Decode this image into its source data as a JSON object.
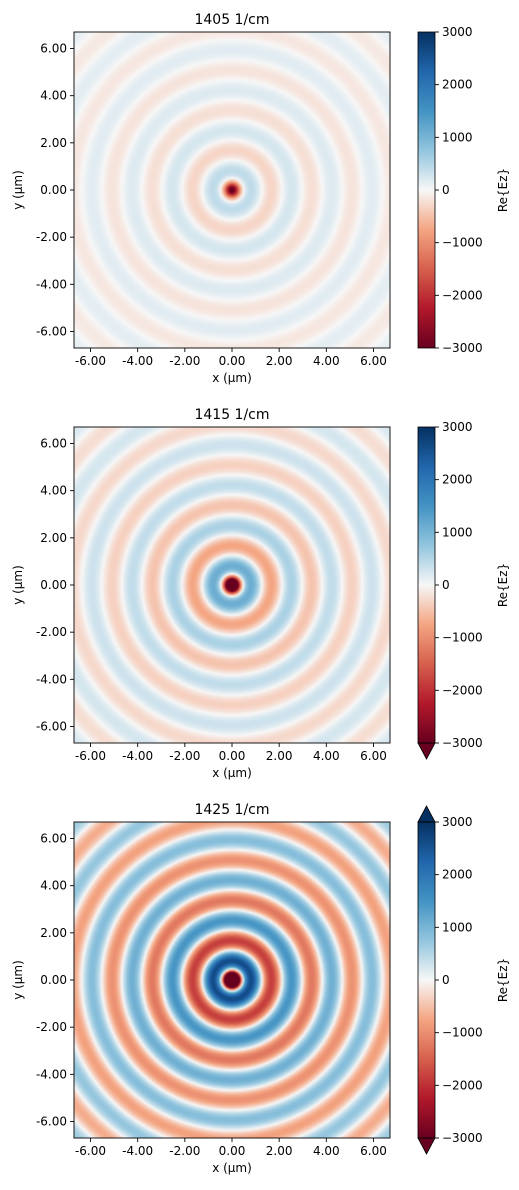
{
  "chart_data": [
    {
      "type": "heatmap",
      "title": "1405 1/cm",
      "xlabel": "x (µm)",
      "ylabel": "y (µm)",
      "xlim": [
        -6.7,
        6.7
      ],
      "ylim": [
        -6.7,
        6.7
      ],
      "xticks": [
        -6,
        -4,
        -2,
        0,
        2,
        4,
        6
      ],
      "xtick_labels": [
        "-6.00",
        "-4.00",
        "-2.00",
        "0.00",
        "2.00",
        "4.00",
        "6.00"
      ],
      "yticks": [
        6,
        4,
        2,
        0,
        -2,
        -4,
        -6
      ],
      "ytick_labels": [
        "6.00",
        "4.00",
        "2.00",
        "0.00",
        "-2.00",
        "-4.00",
        "-6.00"
      ],
      "colorbar": {
        "label": "Re{Ez}",
        "range": [
          -3000,
          3000
        ],
        "ticks": [
          3000,
          2000,
          1000,
          0,
          -1000,
          -2000,
          -3000
        ],
        "tick_labels": [
          "3000",
          "2000",
          "1000",
          "0",
          "−1000",
          "−2000",
          "−3000"
        ],
        "extend": "neither",
        "colormap": "RdBu"
      },
      "field": {
        "pattern": "concentric rings",
        "center_value": -2500,
        "ring_period_um": 1.7,
        "amplitude": 500,
        "decay": 0.6
      }
    },
    {
      "type": "heatmap",
      "title": "1415 1/cm",
      "xlabel": "x (µm)",
      "ylabel": "y (µm)",
      "xlim": [
        -6.7,
        6.7
      ],
      "ylim": [
        -6.7,
        6.7
      ],
      "xticks": [
        -6,
        -4,
        -2,
        0,
        2,
        4,
        6
      ],
      "xtick_labels": [
        "-6.00",
        "-4.00",
        "-2.00",
        "0.00",
        "2.00",
        "4.00",
        "6.00"
      ],
      "yticks": [
        6,
        4,
        2,
        0,
        -2,
        -4,
        -6
      ],
      "ytick_labels": [
        "6.00",
        "4.00",
        "2.00",
        "0.00",
        "-2.00",
        "-4.00",
        "-6.00"
      ],
      "colorbar": {
        "label": "Re{Ez}",
        "range": [
          -3000,
          3000
        ],
        "ticks": [
          3000,
          2000,
          1000,
          0,
          -1000,
          -2000,
          -3000
        ],
        "tick_labels": [
          "3000",
          "2000",
          "1000",
          "0",
          "−1000",
          "−2000",
          "−3000"
        ],
        "extend": "min",
        "colormap": "RdBu"
      },
      "field": {
        "pattern": "concentric rings",
        "center_value": -4000,
        "ring_period_um": 1.7,
        "amplitude": 1400,
        "decay": 0.8
      }
    },
    {
      "type": "heatmap",
      "title": "1425 1/cm",
      "xlabel": "x (µm)",
      "ylabel": "y (µm)",
      "xlim": [
        -6.7,
        6.7
      ],
      "ylim": [
        -6.7,
        6.7
      ],
      "xticks": [
        -6,
        -4,
        -2,
        0,
        2,
        4,
        6
      ],
      "xtick_labels": [
        "-6.00",
        "-4.00",
        "-2.00",
        "0.00",
        "2.00",
        "4.00",
        "6.00"
      ],
      "yticks": [
        6,
        4,
        2,
        0,
        -2,
        -4,
        -6
      ],
      "ytick_labels": [
        "6.00",
        "4.00",
        "2.00",
        "0.00",
        "-2.00",
        "-4.00",
        "-6.00"
      ],
      "colorbar": {
        "label": "Re{Ez}",
        "range": [
          -3000,
          3000
        ],
        "ticks": [
          3000,
          2000,
          1000,
          0,
          -1000,
          -2000,
          -3000
        ],
        "tick_labels": [
          "3000",
          "2000",
          "1000",
          "0",
          "−1000",
          "−2000",
          "−3000"
        ],
        "extend": "both",
        "colormap": "RdBu"
      },
      "field": {
        "pattern": "concentric rings",
        "center_value": -5000,
        "ring_period_um": 1.7,
        "amplitude": 3200,
        "decay": 0.7
      }
    }
  ]
}
